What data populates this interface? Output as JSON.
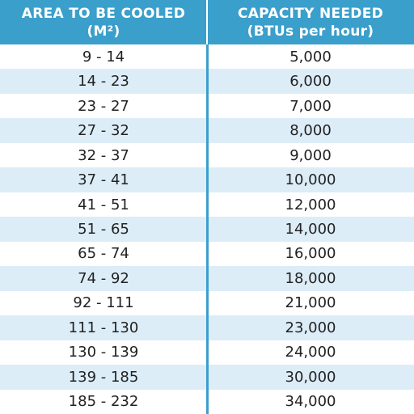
{
  "table": {
    "header": [
      [
        "AREA TO BE COOLED",
        "(M²)"
      ],
      [
        "CAPACITY NEEDED",
        "(BTUs per hour)"
      ]
    ],
    "rows": [
      [
        "9 - 14",
        "5,000"
      ],
      [
        "14 - 23",
        "6,000"
      ],
      [
        "23 - 27",
        "7,000"
      ],
      [
        "27 - 32",
        "8,000"
      ],
      [
        "32 - 37",
        "9,000"
      ],
      [
        "37 - 41",
        "10,000"
      ],
      [
        "41 - 51",
        "12,000"
      ],
      [
        "51 - 65",
        "14,000"
      ],
      [
        "65 - 74",
        "16,000"
      ],
      [
        "74 - 92",
        "18,000"
      ],
      [
        "92 - 111",
        "21,000"
      ],
      [
        "111 - 130",
        "23,000"
      ],
      [
        "130 - 139",
        "24,000"
      ],
      [
        "139 - 185",
        "30,000"
      ],
      [
        "185 - 232",
        "34,000"
      ]
    ]
  }
}
